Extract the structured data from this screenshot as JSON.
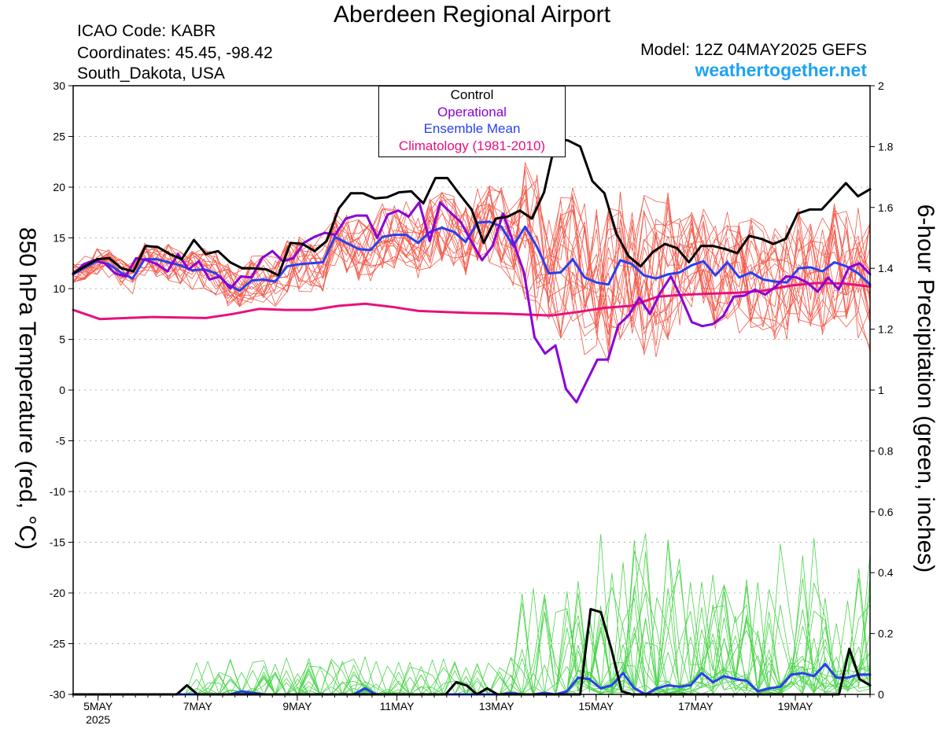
{
  "header": {
    "title": "Aberdeen Regional Airport",
    "icao": "ICAO Code: KABR",
    "coordinates": "Coordinates: 45.45, -98.42",
    "location": "South_Dakota, USA",
    "model": "Model: 12Z 04MAY2025 GEFS",
    "site": "weathertogether.net"
  },
  "legend": [
    {
      "label": "Control",
      "color": "#000000"
    },
    {
      "label": "Operational",
      "color": "#8a00d8"
    },
    {
      "label": "Ensemble Mean",
      "color": "#2a3ff0"
    },
    {
      "label": "Climatology (1981-2010)",
      "color": "#e8107e"
    }
  ],
  "colors": {
    "members_temp": "#f25a4a",
    "members_precip": "#4ad44a",
    "control": "#000000",
    "operational": "#8a00d8",
    "mean": "#2a3ff0",
    "climatology": "#e8107e"
  },
  "chart_data": {
    "type": "line",
    "title": "Aberdeen Regional Airport",
    "ylabel_left": "850 hPa Temperature (red, °C)",
    "ylabel_right": "6-hour Precipitation (green, inches)",
    "x_start": "4MAY 12Z",
    "x_step_hours": 6,
    "x_ticks": [
      {
        "label": "5MAY",
        "sub": "2025",
        "step": 2
      },
      {
        "label": "7MAY",
        "step": 10
      },
      {
        "label": "9MAY",
        "step": 18
      },
      {
        "label": "11MAY",
        "step": 26
      },
      {
        "label": "13MAY",
        "step": 34
      },
      {
        "label": "15MAY",
        "step": 42
      },
      {
        "label": "17MAY",
        "step": 50
      },
      {
        "label": "19MAY",
        "step": 58
      }
    ],
    "ylim_left": [
      -30,
      30
    ],
    "yticks_left": [
      30,
      25,
      20,
      15,
      10,
      5,
      0,
      -5,
      -10,
      -15,
      -20,
      -25,
      -30
    ],
    "ylim_right": [
      0,
      2
    ],
    "yticks_right": [
      "2",
      "1.8",
      "1.6",
      "1.4",
      "1.2",
      "1",
      "0.8",
      "0.6",
      "0.4",
      "0.2",
      "0"
    ],
    "grid": true,
    "temperature": {
      "control": [
        11.5,
        12.2,
        12.9,
        13,
        12,
        11.7,
        14.2,
        14.1,
        13.4,
        12.9,
        14.8,
        13.4,
        13.7,
        12.6,
        12,
        12,
        11.9,
        11.3,
        14.5,
        14.4,
        13.7,
        14.7,
        17.9,
        19.4,
        19.4,
        18.9,
        19,
        19.5,
        19.6,
        18.4,
        20.9,
        20.9,
        19.3,
        17.8,
        14.5,
        16.9,
        17.1,
        17.7,
        16.9,
        19.5,
        24.8,
        24.6,
        24,
        20.6,
        19.4,
        15.4,
        13.2,
        12.2,
        13.6,
        14.4,
        14,
        12.6,
        14.2,
        14.2,
        13.9,
        13.5,
        15.2,
        14.9,
        14.4,
        14.9,
        17.4,
        17.8,
        17.8,
        19.1,
        20.4,
        19.1,
        19.8
      ],
      "operational": [
        11.4,
        12.4,
        12.8,
        12.5,
        11.5,
        11.2,
        13,
        12.8,
        12.4,
        11.7,
        13.4,
        11.9,
        12.7,
        10.9,
        11.2,
        10,
        11.2,
        11.1,
        13,
        13.7,
        12.7,
        13,
        14.5,
        15.1,
        15.5,
        15.3,
        16.9,
        17.2,
        17.2,
        15,
        17.3,
        17.7,
        17.1,
        18.5,
        14.7,
        18.5,
        17.5,
        16.5,
        14.6,
        12.8,
        14.2,
        17.4,
        14.5,
        11.6,
        5.2,
        3.6,
        4.4,
        0.1,
        -1.2,
        0.9,
        3,
        3,
        6.4,
        7.4,
        9.1,
        7.5,
        9.6,
        11.2,
        9.1,
        6.7,
        6.3,
        6.5,
        7.3,
        9.2,
        9.3,
        9.9,
        9.4,
        10.2,
        11.2,
        11.1,
        10.6,
        9.7,
        11.1,
        9.9,
        12.1,
        12.5,
        11.4
      ],
      "mean": [
        11.4,
        12.1,
        12.7,
        12.4,
        11.6,
        11,
        12.9,
        12.9,
        12.6,
        12.3,
        11.8,
        11.9,
        11.5,
        10.4,
        9.8,
        10.8,
        10.9,
        10.7,
        12.2,
        12.4,
        12.5,
        12.6,
        15.1,
        14.5,
        13.9,
        13.8,
        15.1,
        15.3,
        15.3,
        14.5,
        15.6,
        16,
        15.6,
        14.6,
        16.5,
        16.6,
        16.1,
        14.2,
        16.1,
        14.1,
        11.5,
        11.6,
        12.9,
        11.1,
        10.6,
        10.4,
        12.8,
        12.4,
        11.3,
        11,
        11.4,
        11.6,
        12.3,
        12.7,
        11.3,
        12.6,
        11.1,
        11.6,
        10.9,
        10.7,
        10.6,
        12,
        12.1,
        11.7,
        12.6,
        12.2,
        11.5,
        10.4
      ],
      "climatology": [
        7.9,
        7.0,
        7.1,
        7.2,
        7.15,
        7.1,
        7.5,
        8.0,
        7.9,
        7.9,
        8.3,
        8.5,
        8.2,
        7.8,
        7.7,
        7.6,
        7.55,
        7.45,
        7.35,
        7.7,
        8.1,
        8.3,
        9.2,
        9.4,
        9.5,
        9.6,
        9.8,
        10.3,
        10.55,
        10.5,
        10.2
      ]
    },
    "precipitation": {
      "control": [
        0,
        0,
        0,
        0,
        0,
        0,
        0,
        0,
        0,
        0,
        0,
        0.03,
        0,
        0,
        0,
        0,
        0,
        0,
        0,
        0,
        0,
        0,
        0,
        0,
        0,
        0,
        0,
        0,
        0,
        0,
        0,
        0,
        0,
        0,
        0,
        0,
        0,
        0.04,
        0.03,
        0,
        0.02,
        0,
        0,
        0,
        0,
        0,
        0,
        0,
        0,
        0,
        0.28,
        0.27,
        0.15,
        0.01,
        0,
        0,
        0,
        0,
        0,
        0,
        0,
        0,
        0,
        0,
        0,
        0,
        0,
        0,
        0,
        0,
        0,
        0,
        0,
        0,
        0,
        0.15,
        0.05,
        0.03
      ],
      "mean": [
        0,
        0,
        0,
        0,
        0,
        0,
        0,
        0,
        0,
        0,
        0,
        0,
        0,
        0,
        0,
        0.01,
        0.005,
        0,
        0,
        0,
        0,
        0,
        0,
        0,
        0,
        0,
        0.02,
        0,
        0,
        0,
        0,
        0,
        0,
        0,
        0,
        0,
        0,
        0,
        0,
        0.005,
        0,
        0,
        0.005,
        0,
        0.01,
        0.055,
        0.05,
        0.02,
        0.03,
        0.07,
        0.02,
        0,
        0.02,
        0.03,
        0.025,
        0.03,
        0.07,
        0.04,
        0.06,
        0.05,
        0.045,
        0.01,
        0.02,
        0.025,
        0.065,
        0.07,
        0.06,
        0.1,
        0.055,
        0.055,
        0.065,
        0.065
      ]
    }
  }
}
